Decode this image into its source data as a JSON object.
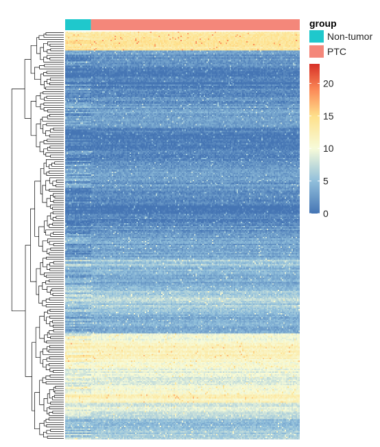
{
  "chart_data": {
    "type": "heatmap",
    "title": "",
    "xlabel": "",
    "ylabel": "",
    "annotation": {
      "title": "group",
      "groups": [
        {
          "name": "Non-tumor",
          "color": "#1FC8CC",
          "sample_fraction": 0.11
        },
        {
          "name": "PTC",
          "color": "#F4877A",
          "sample_fraction": 0.89
        }
      ]
    },
    "colorbar": {
      "min": 0,
      "max": 23,
      "ticks": [
        "0",
        "5",
        "10",
        "15",
        "20"
      ],
      "tick_values": [
        0,
        5,
        10,
        15,
        20
      ],
      "colors": [
        "#4575B4",
        "#91BFDB",
        "#FFFFBF",
        "#FC8D59",
        "#D73027"
      ]
    },
    "row_dendrogram": true,
    "approx_value_profile": [
      {
        "rows": "top band",
        "value": 13
      },
      {
        "rows": "upper block",
        "value": 2
      },
      {
        "rows": "middle block",
        "value": 4
      },
      {
        "rows": "lower-middle block",
        "value": 7
      },
      {
        "rows": "bottom block",
        "value": 11
      }
    ]
  }
}
